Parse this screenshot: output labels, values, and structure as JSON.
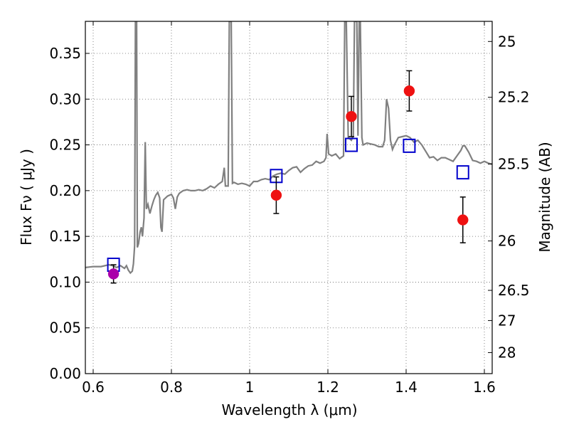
{
  "chart_data": {
    "type": "line",
    "xlabel": "Wavelength  λ (μm)",
    "ylabel": "Flux  Fν  ( μJy )",
    "y2label": "Magnitude (AB)",
    "xlim": [
      0.58,
      1.62
    ],
    "ylim": [
      0.0,
      0.385
    ],
    "grid": true,
    "x_ticks": [
      {
        "value": 0.6,
        "label": "0.6"
      },
      {
        "value": 0.8,
        "label": "0.8"
      },
      {
        "value": 1.0,
        "label": "1"
      },
      {
        "value": 1.2,
        "label": "1.2"
      },
      {
        "value": 1.4,
        "label": "1.4"
      },
      {
        "value": 1.6,
        "label": "1.6"
      }
    ],
    "y_ticks": [
      {
        "value": 0.0,
        "label": "0.00"
      },
      {
        "value": 0.05,
        "label": "0.05"
      },
      {
        "value": 0.1,
        "label": "0.10"
      },
      {
        "value": 0.15,
        "label": "0.15"
      },
      {
        "value": 0.2,
        "label": "0.20"
      },
      {
        "value": 0.25,
        "label": "0.25"
      },
      {
        "value": 0.3,
        "label": "0.30"
      },
      {
        "value": 0.35,
        "label": "0.35"
      }
    ],
    "y2_ticks": [
      {
        "flux": 0.363,
        "label": "25"
      },
      {
        "flux": 0.302,
        "label": "25.2"
      },
      {
        "flux": 0.229,
        "label": "25.5"
      },
      {
        "flux": 0.145,
        "label": "26"
      },
      {
        "flux": 0.091,
        "label": "26.5"
      },
      {
        "flux": 0.058,
        "label": "27"
      },
      {
        "flux": 0.023,
        "label": "28"
      }
    ],
    "series": [
      {
        "type": "line",
        "color": "#808080",
        "points": [
          [
            0.58,
            0.116
          ],
          [
            0.6,
            0.117
          ],
          [
            0.62,
            0.117
          ],
          [
            0.64,
            0.119
          ],
          [
            0.65,
            0.118
          ],
          [
            0.66,
            0.116
          ],
          [
            0.67,
            0.118
          ],
          [
            0.68,
            0.115
          ],
          [
            0.685,
            0.118
          ],
          [
            0.69,
            0.113
          ],
          [
            0.695,
            0.11
          ],
          [
            0.7,
            0.112
          ],
          [
            0.703,
            0.12
          ],
          [
            0.706,
            0.14
          ],
          [
            0.708,
            0.385
          ],
          [
            0.711,
            0.385
          ],
          [
            0.713,
            0.138
          ],
          [
            0.716,
            0.142
          ],
          [
            0.72,
            0.155
          ],
          [
            0.723,
            0.16
          ],
          [
            0.726,
            0.15
          ],
          [
            0.73,
            0.17
          ],
          [
            0.733,
            0.253
          ],
          [
            0.736,
            0.18
          ],
          [
            0.74,
            0.185
          ],
          [
            0.745,
            0.175
          ],
          [
            0.75,
            0.183
          ],
          [
            0.755,
            0.19
          ],
          [
            0.76,
            0.195
          ],
          [
            0.765,
            0.198
          ],
          [
            0.77,
            0.192
          ],
          [
            0.773,
            0.16
          ],
          [
            0.776,
            0.155
          ],
          [
            0.78,
            0.19
          ],
          [
            0.79,
            0.194
          ],
          [
            0.8,
            0.196
          ],
          [
            0.805,
            0.192
          ],
          [
            0.81,
            0.18
          ],
          [
            0.815,
            0.193
          ],
          [
            0.82,
            0.197
          ],
          [
            0.83,
            0.2
          ],
          [
            0.84,
            0.201
          ],
          [
            0.85,
            0.2
          ],
          [
            0.86,
            0.2
          ],
          [
            0.87,
            0.201
          ],
          [
            0.88,
            0.2
          ],
          [
            0.89,
            0.202
          ],
          [
            0.9,
            0.205
          ],
          [
            0.91,
            0.203
          ],
          [
            0.92,
            0.207
          ],
          [
            0.93,
            0.21
          ],
          [
            0.935,
            0.225
          ],
          [
            0.938,
            0.205
          ],
          [
            0.945,
            0.205
          ],
          [
            0.948,
            0.385
          ],
          [
            0.953,
            0.385
          ],
          [
            0.956,
            0.208
          ],
          [
            0.96,
            0.209
          ],
          [
            0.97,
            0.207
          ],
          [
            0.98,
            0.208
          ],
          [
            0.99,
            0.207
          ],
          [
            1.0,
            0.205
          ],
          [
            1.01,
            0.21
          ],
          [
            1.02,
            0.21
          ],
          [
            1.03,
            0.212
          ],
          [
            1.04,
            0.213
          ],
          [
            1.05,
            0.212
          ],
          [
            1.06,
            0.216
          ],
          [
            1.07,
            0.218
          ],
          [
            1.08,
            0.219
          ],
          [
            1.09,
            0.218
          ],
          [
            1.1,
            0.222
          ],
          [
            1.11,
            0.225
          ],
          [
            1.12,
            0.226
          ],
          [
            1.13,
            0.22
          ],
          [
            1.14,
            0.224
          ],
          [
            1.15,
            0.227
          ],
          [
            1.16,
            0.228
          ],
          [
            1.17,
            0.232
          ],
          [
            1.18,
            0.23
          ],
          [
            1.19,
            0.232
          ],
          [
            1.195,
            0.236
          ],
          [
            1.198,
            0.262
          ],
          [
            1.202,
            0.24
          ],
          [
            1.21,
            0.238
          ],
          [
            1.22,
            0.24
          ],
          [
            1.23,
            0.235
          ],
          [
            1.24,
            0.238
          ],
          [
            1.243,
            0.385
          ],
          [
            1.247,
            0.385
          ],
          [
            1.252,
            0.258
          ],
          [
            1.26,
            0.255
          ],
          [
            1.265,
            0.26
          ],
          [
            1.268,
            0.385
          ],
          [
            1.274,
            0.385
          ],
          [
            1.277,
            0.26
          ],
          [
            1.28,
            0.385
          ],
          [
            1.283,
            0.385
          ],
          [
            1.287,
            0.258
          ],
          [
            1.29,
            0.25
          ],
          [
            1.3,
            0.252
          ],
          [
            1.31,
            0.251
          ],
          [
            1.32,
            0.25
          ],
          [
            1.33,
            0.248
          ],
          [
            1.34,
            0.248
          ],
          [
            1.345,
            0.255
          ],
          [
            1.35,
            0.3
          ],
          [
            1.355,
            0.29
          ],
          [
            1.36,
            0.255
          ],
          [
            1.365,
            0.245
          ],
          [
            1.37,
            0.25
          ],
          [
            1.38,
            0.258
          ],
          [
            1.39,
            0.259
          ],
          [
            1.4,
            0.26
          ],
          [
            1.41,
            0.258
          ],
          [
            1.42,
            0.253
          ],
          [
            1.43,
            0.255
          ],
          [
            1.44,
            0.25
          ],
          [
            1.45,
            0.243
          ],
          [
            1.46,
            0.236
          ],
          [
            1.47,
            0.237
          ],
          [
            1.48,
            0.233
          ],
          [
            1.49,
            0.236
          ],
          [
            1.5,
            0.236
          ],
          [
            1.51,
            0.234
          ],
          [
            1.52,
            0.232
          ],
          [
            1.53,
            0.238
          ],
          [
            1.54,
            0.244
          ],
          [
            1.545,
            0.249
          ],
          [
            1.55,
            0.249
          ],
          [
            1.56,
            0.242
          ],
          [
            1.57,
            0.233
          ],
          [
            1.58,
            0.232
          ],
          [
            1.59,
            0.23
          ],
          [
            1.6,
            0.232
          ],
          [
            1.61,
            0.23
          ],
          [
            1.62,
            0.229
          ]
        ]
      },
      {
        "type": "scatter",
        "marker": "square-open",
        "color": "#0000cc",
        "points": [
          [
            0.652,
            0.119
          ],
          [
            1.068,
            0.216
          ],
          [
            1.26,
            0.25
          ],
          [
            1.408,
            0.249
          ],
          [
            1.545,
            0.22
          ]
        ]
      },
      {
        "type": "scatter",
        "marker": "circle",
        "color": "#ee1111",
        "points": [
          {
            "x": 1.068,
            "y": 0.195,
            "err": 0.02
          },
          {
            "x": 1.26,
            "y": 0.281,
            "err": 0.022
          },
          {
            "x": 1.408,
            "y": 0.309,
            "err": 0.022
          },
          {
            "x": 1.545,
            "y": 0.168,
            "err": 0.025
          }
        ]
      },
      {
        "type": "scatter",
        "marker": "circle",
        "color": "#aa00aa",
        "points": [
          {
            "x": 0.652,
            "y": 0.109,
            "err": 0.01
          }
        ]
      }
    ]
  }
}
